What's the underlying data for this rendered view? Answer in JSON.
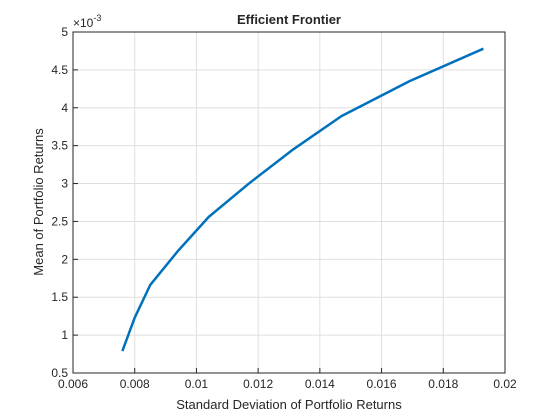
{
  "chart_data": {
    "type": "line",
    "title": "Efficient Frontier",
    "x_label": "Standard Deviation of Portfolio Returns",
    "y_label": "Mean of Portfolio Returns",
    "y_multiplier": {
      "base": "×10",
      "exponent": "-3"
    },
    "x": [
      0.0076,
      0.008,
      0.0085,
      0.0094,
      0.0104,
      0.0117,
      0.0131,
      0.0147,
      0.0169,
      0.0193
    ],
    "series": [
      {
        "name": "Efficient Frontier",
        "color": "#0072bd",
        "values": [
          0.79,
          1.23,
          1.66,
          2.11,
          2.56,
          3.0,
          3.44,
          3.89,
          4.35,
          4.78
        ]
      }
    ],
    "xlim": [
      0.006,
      0.02
    ],
    "xticks": [
      0.006,
      0.008,
      0.01,
      0.012,
      0.014,
      0.016,
      0.018,
      0.02
    ],
    "ylim": [
      0.5,
      5
    ],
    "yticks": [
      0.5,
      1,
      1.5,
      2,
      2.5,
      3,
      3.5,
      4,
      4.5,
      5
    ],
    "grid": true
  }
}
